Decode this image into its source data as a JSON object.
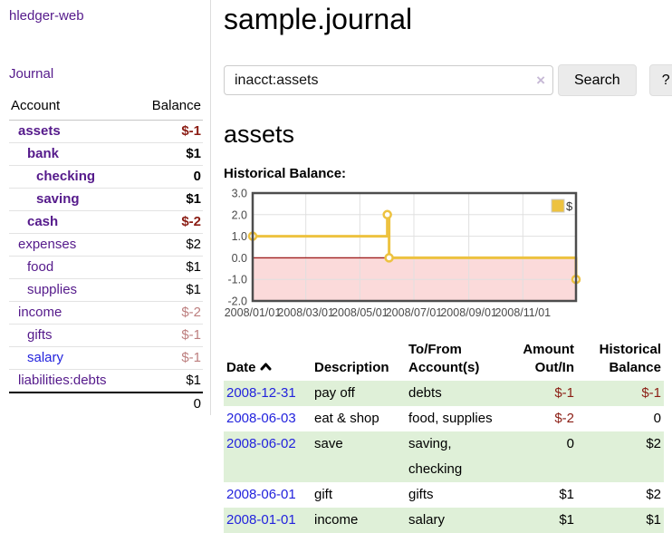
{
  "colors": {
    "link_purple": "#551a8b",
    "link_blue": "#2323dd",
    "negative_strong": "#8b1d14",
    "negative_muted": "#bd7f7f",
    "row_stripe_green": "#dff0d8",
    "series_gold": "#edc240"
  },
  "sidebar": {
    "brand": "hledger-web",
    "nav": {
      "journal": "Journal"
    },
    "accounts_table": {
      "headers": {
        "account": "Account",
        "balance": "Balance"
      },
      "rows": [
        {
          "name": "assets",
          "depth": 1,
          "balance": "$-1",
          "bold": true,
          "neg": "strong"
        },
        {
          "name": "bank",
          "depth": 2,
          "balance": "$1",
          "bold": true
        },
        {
          "name": "checking",
          "depth": 3,
          "balance": "0",
          "bold": true
        },
        {
          "name": "saving",
          "depth": 3,
          "balance": "$1",
          "bold": true
        },
        {
          "name": "cash",
          "depth": 2,
          "balance": "$-2",
          "bold": true,
          "neg": "strong"
        },
        {
          "name": "expenses",
          "depth": 1,
          "balance": "$2"
        },
        {
          "name": "food",
          "depth": 2,
          "balance": "$1"
        },
        {
          "name": "supplies",
          "depth": 2,
          "balance": "$1"
        },
        {
          "name": "income",
          "depth": 1,
          "balance": "$-2",
          "neg": "muted"
        },
        {
          "name": "gifts",
          "depth": 2,
          "balance": "$-1",
          "neg": "muted"
        },
        {
          "name": "salary",
          "depth": 2,
          "balance": "$-1",
          "neg": "muted",
          "link": "unvisited"
        },
        {
          "name": "liabilities:debts",
          "depth": 1,
          "balance": "$1"
        }
      ],
      "total": "0"
    }
  },
  "header": {
    "title": "sample.journal"
  },
  "search": {
    "query": "inacct:assets",
    "clear_icon": "×",
    "search_label": "Search",
    "help_label": "?"
  },
  "account_page": {
    "title": "assets",
    "chart_label": "Historical Balance:"
  },
  "chart_data": {
    "type": "line",
    "style": "steps",
    "title": "Historical Balance",
    "series": [
      {
        "name": "$",
        "color": "#edc240",
        "points": [
          [
            "2008-01-01",
            1.0
          ],
          [
            "2008-06-01",
            2.0
          ],
          [
            "2008-06-03",
            0.0
          ],
          [
            "2008-12-31",
            -1.0
          ]
        ]
      }
    ],
    "x_range": [
      "2008-01-01",
      "2008-12-31"
    ],
    "y_range": [
      -2.0,
      3.0
    ],
    "y_ticks": [
      3.0,
      2.0,
      1.0,
      0.0,
      -1.0,
      -2.0
    ],
    "x_ticks": [
      {
        "label": "2008/01/01",
        "date": "2008-01-01"
      },
      {
        "label": "2008/03/01",
        "date": "2008-03-01"
      },
      {
        "label": "2008/05/01",
        "date": "2008-05-01"
      },
      {
        "label": "2008/07/01",
        "date": "2008-07-01"
      },
      {
        "label": "2008/09/01",
        "date": "2008-09-01"
      },
      {
        "label": "2008/11/01",
        "date": "2008-11-01"
      }
    ],
    "legend_label": "$",
    "legend_position": "top-right",
    "grid": true,
    "negative_region_color": "#fbdada",
    "zero_line_color": "#a02020",
    "grid_color": "#e0e0e0",
    "border_color": "#4d4d4d",
    "tick_color": "#4a4a4a"
  },
  "register": {
    "headers": {
      "date": "Date",
      "description": "Description",
      "accounts": "To/From\nAccount(s)",
      "amount": "Amount\nOut/In",
      "balance": "Historical\nBalance"
    },
    "sort_icon": "chevron-up",
    "rows": [
      {
        "date": "2008-12-31",
        "description": "pay off",
        "accounts": "debts",
        "amount": "$-1",
        "balance": "$-1",
        "amount_neg": true,
        "balance_neg": true
      },
      {
        "date": "2008-06-03",
        "description": "eat & shop",
        "accounts": "food, supplies",
        "amount": "$-2",
        "balance": "0",
        "amount_neg": true
      },
      {
        "date": "2008-06-02",
        "description": "save",
        "accounts": "saving,\nchecking",
        "amount": "0",
        "balance": "$2"
      },
      {
        "date": "2008-06-01",
        "description": "gift",
        "accounts": "gifts",
        "amount": "$1",
        "balance": "$2"
      },
      {
        "date": "2008-01-01",
        "description": "income",
        "accounts": "salary",
        "amount": "$1",
        "balance": "$1"
      }
    ]
  }
}
